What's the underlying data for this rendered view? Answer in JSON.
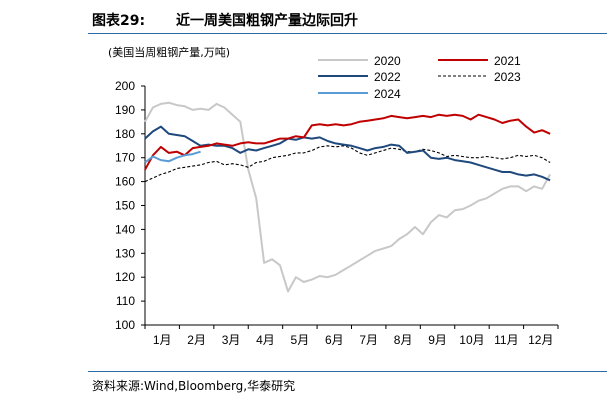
{
  "header": {
    "figure_label": "图表29:",
    "title": "近一周美国粗钢产量边际回升"
  },
  "footer": {
    "source": "资料来源:Wind,Bloomberg,华泰研究"
  },
  "colors": {
    "s2020": "#c8c8c8",
    "s2021": "#c00000",
    "s2022": "#1f497d",
    "s2023": "#000000",
    "s2024": "#5b9bd5",
    "rule": "#2e6aa6"
  },
  "chart_data": {
    "type": "line",
    "unit_label": "(美国当周粗钢产量,万吨)",
    "ylim": [
      100,
      200
    ],
    "yticks": [
      100,
      110,
      120,
      130,
      140,
      150,
      160,
      170,
      180,
      190,
      200
    ],
    "xlim": [
      0,
      52
    ],
    "month_labels": [
      "1月",
      "2月",
      "3月",
      "4月",
      "5月",
      "6月",
      "7月",
      "8月",
      "9月",
      "10月",
      "11月",
      "12月"
    ],
    "legend_position": "top",
    "series": [
      {
        "name": "2020",
        "style": "solid",
        "color_key": "s2020",
        "x": [
          0,
          1,
          2,
          3,
          4,
          5,
          6,
          7,
          8,
          9,
          10,
          11,
          12,
          13,
          14,
          15,
          16,
          17,
          18,
          19,
          20,
          21,
          22,
          23,
          24,
          25,
          26,
          27,
          28,
          29,
          30,
          31,
          32,
          33,
          34,
          35,
          36,
          37,
          38,
          39,
          40,
          41,
          42,
          43,
          44,
          45,
          46,
          47,
          48,
          49,
          50,
          51
        ],
        "values": [
          185,
          191,
          192.5,
          193,
          192,
          191.5,
          190,
          190.5,
          190,
          192.5,
          191,
          188,
          185,
          165,
          153,
          126,
          127.5,
          125,
          114,
          120,
          118,
          119,
          120.5,
          120,
          121,
          123,
          125,
          127,
          129,
          131,
          132,
          133,
          136,
          138,
          141,
          138,
          143,
          146,
          145,
          148,
          148.5,
          150,
          152,
          153,
          155,
          157,
          158,
          158,
          156,
          158,
          157,
          163
        ]
      },
      {
        "name": "2021",
        "style": "solid",
        "color_key": "s2021",
        "x": [
          0,
          1,
          2,
          3,
          4,
          5,
          6,
          7,
          8,
          9,
          10,
          11,
          12,
          13,
          14,
          15,
          16,
          17,
          18,
          19,
          20,
          21,
          22,
          23,
          24,
          25,
          26,
          27,
          28,
          29,
          30,
          31,
          32,
          33,
          34,
          35,
          36,
          37,
          38,
          39,
          40,
          41,
          42,
          43,
          44,
          45,
          46,
          47,
          48,
          49,
          50,
          51
        ],
        "values": [
          165,
          171,
          174.5,
          172,
          172.5,
          171,
          174,
          174.5,
          175,
          176,
          175.5,
          175,
          176,
          176.5,
          176,
          176,
          177,
          178,
          178,
          179,
          178.5,
          183.5,
          184,
          183.5,
          184,
          183.5,
          184,
          185,
          185.5,
          186,
          186.5,
          187.5,
          187,
          186.5,
          187,
          187.5,
          187,
          188,
          187.5,
          188,
          187.5,
          186,
          188,
          187,
          186,
          184.5,
          185.5,
          186,
          183,
          180.5,
          181.5,
          180
        ]
      },
      {
        "name": "2022",
        "style": "solid",
        "color_key": "s2022",
        "x": [
          0,
          1,
          2,
          3,
          4,
          5,
          6,
          7,
          8,
          9,
          10,
          11,
          12,
          13,
          14,
          15,
          16,
          17,
          18,
          19,
          20,
          21,
          22,
          23,
          24,
          25,
          26,
          27,
          28,
          29,
          30,
          31,
          32,
          33,
          34,
          35,
          36,
          37,
          38,
          39,
          40,
          41,
          42,
          43,
          44,
          45,
          46,
          47,
          48,
          49,
          50,
          51
        ],
        "values": [
          178,
          181,
          183,
          180,
          179.5,
          179,
          177,
          175,
          175.5,
          175,
          175,
          174,
          172,
          173.5,
          173,
          174,
          175,
          176,
          178,
          177.5,
          178.5,
          178,
          178.5,
          177,
          176,
          175.5,
          175,
          174,
          173,
          174,
          174.5,
          175.5,
          175,
          172,
          172.5,
          173,
          170,
          169.5,
          170,
          169,
          168.5,
          168,
          167,
          166,
          165,
          164,
          164,
          163,
          162.5,
          163,
          162,
          160.5
        ]
      },
      {
        "name": "2023",
        "style": "dashed",
        "color_key": "s2023",
        "x": [
          0,
          1,
          2,
          3,
          4,
          5,
          6,
          7,
          8,
          9,
          10,
          11,
          12,
          13,
          14,
          15,
          16,
          17,
          18,
          19,
          20,
          21,
          22,
          23,
          24,
          25,
          26,
          27,
          28,
          29,
          30,
          31,
          32,
          33,
          34,
          35,
          36,
          37,
          38,
          39,
          40,
          41,
          42,
          43,
          44,
          45,
          46,
          47,
          48,
          49,
          50,
          51
        ],
        "values": [
          160,
          161.5,
          163,
          164,
          165.5,
          166,
          166.5,
          167,
          168,
          168.5,
          167,
          167.5,
          167,
          166,
          168,
          168.5,
          170,
          170.5,
          171,
          172,
          172,
          173,
          174.5,
          175,
          174.5,
          175,
          174,
          172,
          171,
          172,
          173,
          174,
          173.5,
          172.5,
          172.5,
          173.5,
          173,
          172,
          170.5,
          171,
          170.5,
          170,
          170,
          170.5,
          170,
          169.5,
          170,
          171,
          170.5,
          171,
          170,
          168
        ]
      },
      {
        "name": "2024",
        "style": "solid",
        "color_key": "s2024",
        "x": [
          0,
          1,
          2,
          3,
          4,
          5,
          6,
          7
        ],
        "values": [
          168,
          170.5,
          169,
          168.5,
          170,
          171,
          171.5,
          172.5
        ]
      }
    ]
  }
}
